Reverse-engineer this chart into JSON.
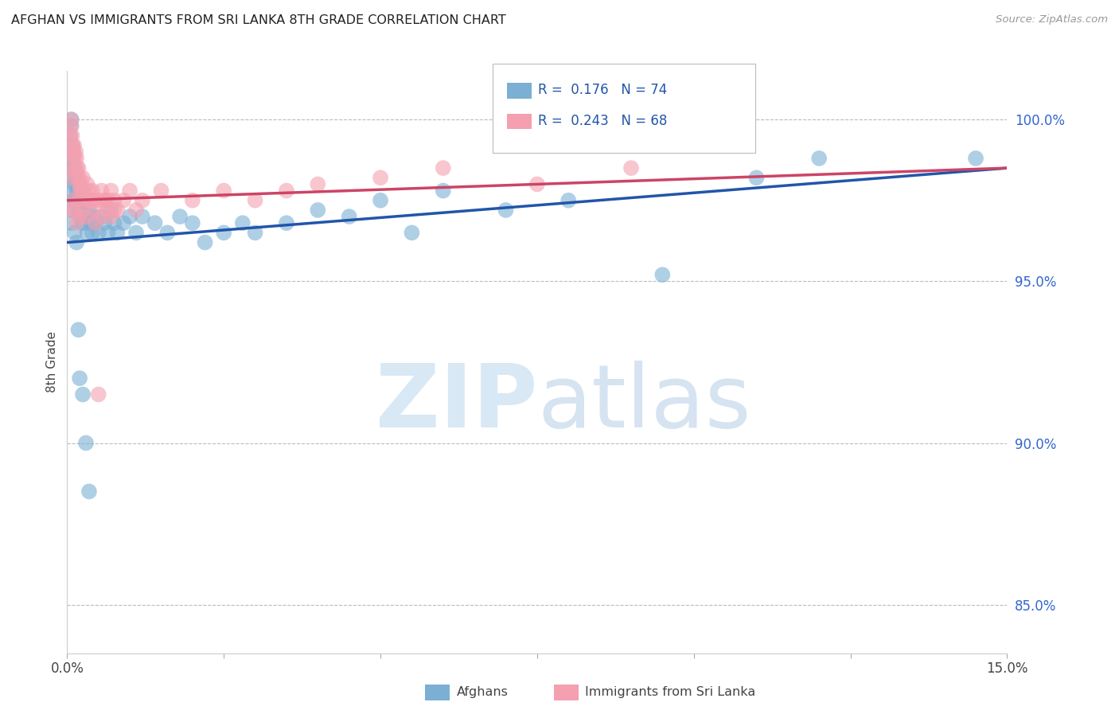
{
  "title": "AFGHAN VS IMMIGRANTS FROM SRI LANKA 8TH GRADE CORRELATION CHART",
  "source": "Source: ZipAtlas.com",
  "ylabel": "8th Grade",
  "ytick_labels": [
    "85.0%",
    "90.0%",
    "95.0%",
    "100.0%"
  ],
  "ytick_values": [
    85.0,
    90.0,
    95.0,
    100.0
  ],
  "xlim": [
    0.0,
    15.0
  ],
  "ylim": [
    83.5,
    101.5
  ],
  "legend_blue_R": "0.176",
  "legend_blue_N": "74",
  "legend_pink_R": "0.243",
  "legend_pink_N": "68",
  "legend_label_blue": "Afghans",
  "legend_label_pink": "Immigrants from Sri Lanka",
  "blue_color": "#7BAFD4",
  "pink_color": "#F4A0B0",
  "trendline_blue": "#2255AA",
  "trendline_pink": "#CC4466",
  "blue_x": [
    0.02,
    0.03,
    0.04,
    0.05,
    0.06,
    0.07,
    0.08,
    0.09,
    0.1,
    0.11,
    0.12,
    0.13,
    0.14,
    0.15,
    0.16,
    0.17,
    0.18,
    0.19,
    0.2,
    0.21,
    0.22,
    0.23,
    0.24,
    0.25,
    0.27,
    0.28,
    0.3,
    0.32,
    0.35,
    0.38,
    0.4,
    0.42,
    0.45,
    0.5,
    0.55,
    0.6,
    0.65,
    0.7,
    0.75,
    0.8,
    0.9,
    1.0,
    1.1,
    1.2,
    1.4,
    1.6,
    1.8,
    2.0,
    2.2,
    2.5,
    2.8,
    3.0,
    3.5,
    4.0,
    4.5,
    5.0,
    5.5,
    6.0,
    7.0,
    8.0,
    9.5,
    11.0,
    12.0,
    14.5,
    0.06,
    0.08,
    0.1,
    0.12,
    0.15,
    0.18,
    0.2,
    0.25,
    0.3,
    0.35
  ],
  "blue_y": [
    97.8,
    98.2,
    98.5,
    99.5,
    99.8,
    100.0,
    99.2,
    98.8,
    99.0,
    98.5,
    98.0,
    97.5,
    98.2,
    97.8,
    97.5,
    98.0,
    97.2,
    97.8,
    97.5,
    97.0,
    97.8,
    97.2,
    96.8,
    97.5,
    97.2,
    96.8,
    97.0,
    96.5,
    97.2,
    96.8,
    96.5,
    97.0,
    96.8,
    96.5,
    97.0,
    96.8,
    96.5,
    97.2,
    96.8,
    96.5,
    96.8,
    97.0,
    96.5,
    97.0,
    96.8,
    96.5,
    97.0,
    96.8,
    96.2,
    96.5,
    96.8,
    96.5,
    96.8,
    97.2,
    97.0,
    97.5,
    96.5,
    97.8,
    97.2,
    97.5,
    95.2,
    98.2,
    98.8,
    98.8,
    96.8,
    97.2,
    97.5,
    96.5,
    96.2,
    93.5,
    92.0,
    91.5,
    90.0,
    88.5
  ],
  "pink_x": [
    0.02,
    0.03,
    0.04,
    0.05,
    0.06,
    0.07,
    0.08,
    0.09,
    0.1,
    0.11,
    0.12,
    0.13,
    0.14,
    0.15,
    0.16,
    0.17,
    0.18,
    0.19,
    0.2,
    0.21,
    0.22,
    0.23,
    0.25,
    0.27,
    0.3,
    0.32,
    0.35,
    0.38,
    0.4,
    0.42,
    0.45,
    0.5,
    0.55,
    0.6,
    0.65,
    0.7,
    0.75,
    0.8,
    0.9,
    1.0,
    1.1,
    1.2,
    1.5,
    2.0,
    2.5,
    3.0,
    3.5,
    4.0,
    5.0,
    6.0,
    7.5,
    9.0,
    0.08,
    0.1,
    0.12,
    0.15,
    0.18,
    0.2,
    0.25,
    0.3,
    0.35,
    0.45,
    0.55,
    0.65,
    0.75,
    0.5,
    0.6,
    0.7
  ],
  "pink_y": [
    98.2,
    98.5,
    99.0,
    99.5,
    100.0,
    99.8,
    99.5,
    99.2,
    99.0,
    99.2,
    98.8,
    98.5,
    99.0,
    98.8,
    98.5,
    98.2,
    98.5,
    98.0,
    98.2,
    97.8,
    98.0,
    97.8,
    98.2,
    97.8,
    97.5,
    98.0,
    97.8,
    97.5,
    97.8,
    97.5,
    97.2,
    97.5,
    97.8,
    97.5,
    97.2,
    97.8,
    97.5,
    97.2,
    97.5,
    97.8,
    97.2,
    97.5,
    97.8,
    97.5,
    97.8,
    97.5,
    97.8,
    98.0,
    98.2,
    98.5,
    98.0,
    98.5,
    97.2,
    97.5,
    97.2,
    96.8,
    97.5,
    97.0,
    97.2,
    97.0,
    97.5,
    96.8,
    97.0,
    97.5,
    97.2,
    91.5,
    97.5,
    97.0
  ]
}
